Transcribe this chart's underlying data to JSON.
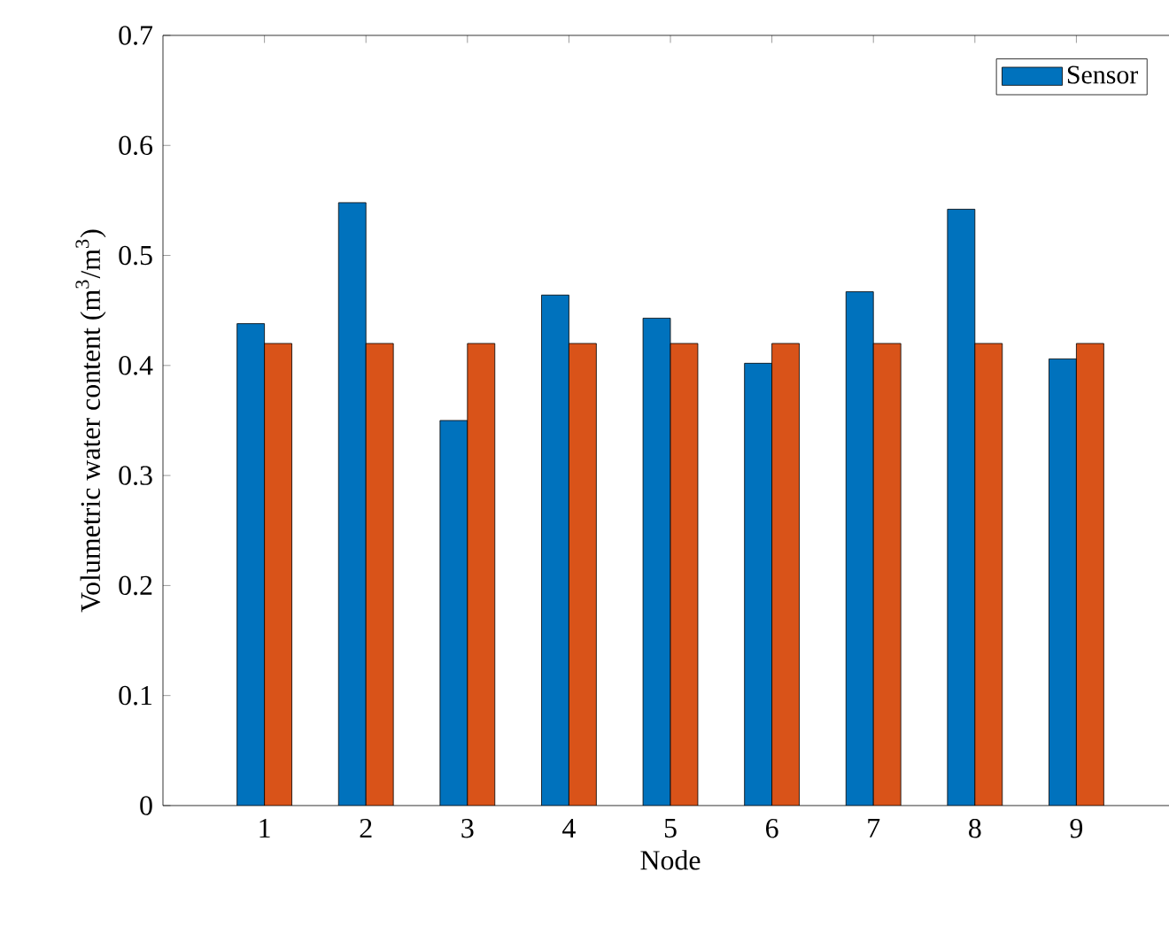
{
  "chart_data": {
    "type": "bar",
    "xlabel": "Node",
    "ylabel": "Volumetric water content (m$^{3}$/m$^{3}$)",
    "categories": [
      "1",
      "2",
      "3",
      "4",
      "5",
      "6",
      "7",
      "8",
      "9"
    ],
    "series": [
      {
        "name": "Sensor",
        "color": "#0072bd",
        "values": [
          0.438,
          0.548,
          0.35,
          0.464,
          0.443,
          0.402,
          0.467,
          0.542,
          0.406
        ]
      },
      {
        "color": "#d95319",
        "values": [
          0.42,
          0.42,
          0.42,
          0.42,
          0.42,
          0.42,
          0.42,
          0.42,
          0.42
        ]
      }
    ],
    "ylim": [
      0,
      0.7
    ],
    "yticks": [
      0,
      0.1,
      0.2,
      0.3,
      0.4,
      0.5,
      0.6,
      0.7
    ],
    "legend": "top right"
  }
}
